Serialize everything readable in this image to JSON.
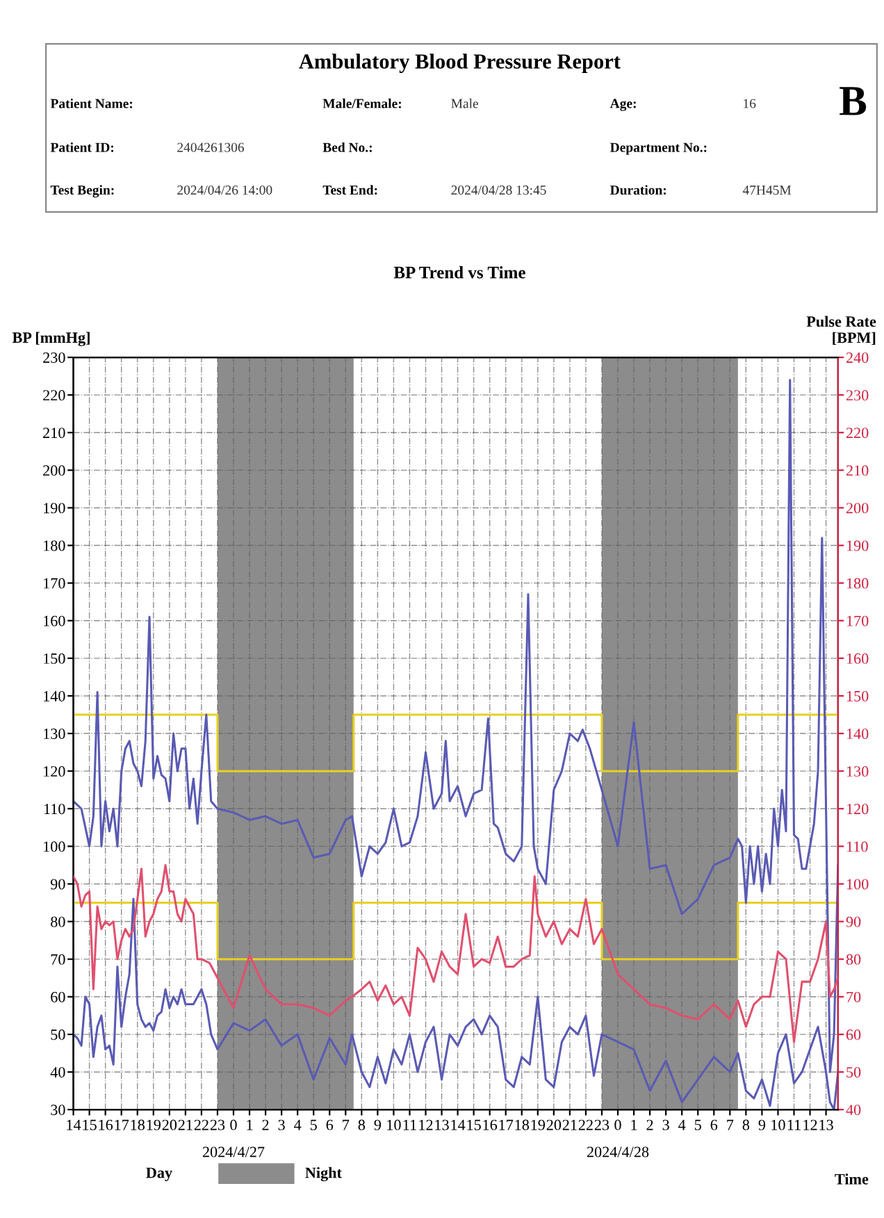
{
  "chart_data": {
    "type": "line",
    "title": "Ambulatory Blood Pressure Report",
    "subtitle": "BP Trend vs Time",
    "ylabel": "BP [mmHg]",
    "y2label": "Pulse Rate\n[BPM]",
    "xlabel": "Time",
    "annotations": [
      "Patient Name:",
      "Male/Female:",
      "Male",
      "Age:",
      "16",
      "Patient ID:",
      "2404261306",
      "Bed No.:",
      "Department No.:",
      "Test Begin:",
      "2024/04/26 14:00",
      "Test End:",
      "2024/04/28 13:45",
      "Duration:",
      "47H45M",
      "B",
      "Day",
      "2024/4/27",
      "2024/4/28",
      "Night"
    ],
    "xlim": [
      "2024-04-26T14:00",
      "2024-04-28T13:45"
    ],
    "xticks": [
      {
        "value": "2024-04-26T14:00",
        "label": "14"
      },
      {
        "value": "2024-04-26T15:00",
        "label": "15"
      },
      {
        "value": "2024-04-26T16:00",
        "label": "16"
      },
      {
        "value": "2024-04-26T17:00",
        "label": "17"
      },
      {
        "value": "2024-04-26T18:00",
        "label": "18"
      },
      {
        "value": "2024-04-26T19:00",
        "label": "19"
      },
      {
        "value": "2024-04-26T20:00",
        "label": "20"
      },
      {
        "value": "2024-04-26T21:00",
        "label": "21"
      },
      {
        "value": "2024-04-26T22:00",
        "label": "22"
      },
      {
        "value": "2024-04-26T23:00",
        "label": "23"
      },
      {
        "value": "2024-04-27T00:00",
        "label": "0"
      },
      {
        "value": "2024-04-27T01:00",
        "label": "1"
      },
      {
        "value": "2024-04-27T02:00",
        "label": "2"
      },
      {
        "value": "2024-04-27T03:00",
        "label": "3"
      },
      {
        "value": "2024-04-27T04:00",
        "label": "4"
      },
      {
        "value": "2024-04-27T05:00",
        "label": "5"
      },
      {
        "value": "2024-04-27T06:00",
        "label": "6"
      },
      {
        "value": "2024-04-27T07:00",
        "label": "7"
      },
      {
        "value": "2024-04-27T08:00",
        "label": "8"
      },
      {
        "value": "2024-04-27T09:00",
        "label": "9"
      },
      {
        "value": "2024-04-27T10:00",
        "label": "10"
      },
      {
        "value": "2024-04-27T11:00",
        "label": "11"
      },
      {
        "value": "2024-04-27T12:00",
        "label": "12"
      },
      {
        "value": "2024-04-27T13:00",
        "label": "13"
      },
      {
        "value": "2024-04-27T14:00",
        "label": "14"
      },
      {
        "value": "2024-04-27T15:00",
        "label": "15"
      },
      {
        "value": "2024-04-27T16:00",
        "label": "16"
      },
      {
        "value": "2024-04-27T17:00",
        "label": "17"
      },
      {
        "value": "2024-04-27T18:00",
        "label": "18"
      },
      {
        "value": "2024-04-27T19:00",
        "label": "19"
      },
      {
        "value": "2024-04-27T20:00",
        "label": "20"
      },
      {
        "value": "2024-04-27T21:00",
        "label": "21"
      },
      {
        "value": "2024-04-27T22:00",
        "label": "22"
      },
      {
        "value": "2024-04-27T23:00",
        "label": "23"
      },
      {
        "value": "2024-04-28T00:00",
        "label": "0"
      },
      {
        "value": "2024-04-28T01:00",
        "label": "1"
      },
      {
        "value": "2024-04-28T02:00",
        "label": "2"
      },
      {
        "value": "2024-04-28T03:00",
        "label": "3"
      },
      {
        "value": "2024-04-28T04:00",
        "label": "4"
      },
      {
        "value": "2024-04-28T05:00",
        "label": "5"
      },
      {
        "value": "2024-04-28T06:00",
        "label": "6"
      },
      {
        "value": "2024-04-28T07:00",
        "label": "7"
      },
      {
        "value": "2024-04-28T08:00",
        "label": "8"
      },
      {
        "value": "2024-04-28T09:00",
        "label": "9"
      },
      {
        "value": "2024-04-28T10:00",
        "label": "10"
      },
      {
        "value": "2024-04-28T11:00",
        "label": "11"
      },
      {
        "value": "2024-04-28T12:00",
        "label": "12"
      },
      {
        "value": "2024-04-28T13:00",
        "label": "13"
      }
    ],
    "ylim": [
      30,
      230
    ],
    "yticks": [
      30,
      40,
      50,
      60,
      70,
      80,
      90,
      100,
      110,
      120,
      130,
      140,
      150,
      160,
      170,
      180,
      190,
      200,
      210,
      220,
      230
    ],
    "y2lim": [
      40,
      240
    ],
    "y2ticks": [
      40,
      50,
      60,
      70,
      80,
      90,
      100,
      110,
      120,
      130,
      140,
      150,
      160,
      170,
      180,
      190,
      200,
      210,
      220,
      230,
      240
    ],
    "grid": true,
    "bands": [
      {
        "axis": "x",
        "from": "2024-04-26T23:00",
        "to": "2024-04-27T07:30",
        "color": "#8c8c8c"
      },
      {
        "axis": "x",
        "from": "2024-04-27T23:00",
        "to": "2024-04-28T07:30",
        "color": "#8c8c8c"
      }
    ],
    "series": [
      {
        "color": "#e8d020",
        "x": [
          "2024-04-26T14:00",
          "2024-04-26T23:00",
          "2024-04-26T23:00",
          "2024-04-27T07:30",
          "2024-04-27T07:30",
          "2024-04-27T23:00",
          "2024-04-27T23:00",
          "2024-04-28T07:30",
          "2024-04-28T07:30",
          "2024-04-28T13:45"
        ],
        "values": [
          135,
          135,
          120,
          120,
          135,
          135,
          120,
          120,
          135,
          135
        ]
      },
      {
        "color": "#e8d020",
        "x": [
          "2024-04-26T14:00",
          "2024-04-26T23:00",
          "2024-04-26T23:00",
          "2024-04-27T07:30",
          "2024-04-27T07:30",
          "2024-04-27T23:00",
          "2024-04-27T23:00",
          "2024-04-28T07:30",
          "2024-04-28T07:30",
          "2024-04-28T13:45"
        ],
        "values": [
          85,
          85,
          70,
          70,
          85,
          85,
          70,
          70,
          85,
          85
        ]
      },
      {
        "color": "#5a5ab4",
        "x": [
          "2024-04-26T14:00",
          "2024-04-26T14:15",
          "2024-04-26T14:30",
          "2024-04-26T14:45",
          "2024-04-26T15:00",
          "2024-04-26T15:15",
          "2024-04-26T15:30",
          "2024-04-26T15:45",
          "2024-04-26T16:00",
          "2024-04-26T16:15",
          "2024-04-26T16:30",
          "2024-04-26T16:45",
          "2024-04-26T17:00",
          "2024-04-26T17:15",
          "2024-04-26T17:30",
          "2024-04-26T17:45",
          "2024-04-26T18:00",
          "2024-04-26T18:15",
          "2024-04-26T18:30",
          "2024-04-26T18:45",
          "2024-04-26T19:00",
          "2024-04-26T19:15",
          "2024-04-26T19:30",
          "2024-04-26T19:45",
          "2024-04-26T20:00",
          "2024-04-26T20:15",
          "2024-04-26T20:30",
          "2024-04-26T20:45",
          "2024-04-26T21:00",
          "2024-04-26T21:15",
          "2024-04-26T21:30",
          "2024-04-26T21:45",
          "2024-04-26T22:00",
          "2024-04-26T22:18",
          "2024-04-26T22:36",
          "2024-04-26T23:00",
          "2024-04-27T00:00",
          "2024-04-27T01:00",
          "2024-04-27T02:00",
          "2024-04-27T03:00",
          "2024-04-27T04:00",
          "2024-04-27T05:00",
          "2024-04-27T06:00",
          "2024-04-27T07:00",
          "2024-04-27T07:24",
          "2024-04-27T08:00",
          "2024-04-27T08:30",
          "2024-04-27T09:00",
          "2024-04-27T09:30",
          "2024-04-27T10:00",
          "2024-04-27T10:30",
          "2024-04-27T11:00",
          "2024-04-27T11:30",
          "2024-04-27T12:00",
          "2024-04-27T12:30",
          "2024-04-27T13:00",
          "2024-04-27T13:15",
          "2024-04-27T13:30",
          "2024-04-27T14:00",
          "2024-04-27T14:30",
          "2024-04-27T15:00",
          "2024-04-27T15:30",
          "2024-04-27T15:54",
          "2024-04-27T16:15",
          "2024-04-27T16:30",
          "2024-04-27T17:00",
          "2024-04-27T17:30",
          "2024-04-27T18:00",
          "2024-04-27T18:24",
          "2024-04-27T18:45",
          "2024-04-27T19:00",
          "2024-04-27T19:30",
          "2024-04-27T20:00",
          "2024-04-27T20:30",
          "2024-04-27T21:00",
          "2024-04-27T21:30",
          "2024-04-27T21:48",
          "2024-04-27T22:15",
          "2024-04-27T23:00",
          "2024-04-28T00:00",
          "2024-04-28T01:00",
          "2024-04-28T02:00",
          "2024-04-28T03:00",
          "2024-04-28T04:00",
          "2024-04-28T05:00",
          "2024-04-28T06:00",
          "2024-04-28T07:00",
          "2024-04-28T07:30",
          "2024-04-28T07:45",
          "2024-04-28T08:00",
          "2024-04-28T08:15",
          "2024-04-28T08:30",
          "2024-04-28T08:45",
          "2024-04-28T09:00",
          "2024-04-28T09:15",
          "2024-04-28T09:30",
          "2024-04-28T09:45",
          "2024-04-28T10:00",
          "2024-04-28T10:15",
          "2024-04-28T10:30",
          "2024-04-28T10:45",
          "2024-04-28T11:00",
          "2024-04-28T11:15",
          "2024-04-28T11:30",
          "2024-04-28T11:45",
          "2024-04-28T12:00",
          "2024-04-28T12:15",
          "2024-04-28T12:30",
          "2024-04-28T12:45",
          "2024-04-28T13:00",
          "2024-04-28T13:15",
          "2024-04-28T13:30",
          "2024-04-28T13:45"
        ],
        "values": [
          112,
          111,
          110,
          105,
          100,
          108,
          141,
          100,
          112,
          104,
          110,
          100,
          120,
          126,
          128,
          122,
          120,
          116,
          128,
          161,
          118,
          124,
          119,
          118,
          112,
          130,
          120,
          126,
          126,
          110,
          118,
          106,
          120,
          135,
          112,
          110,
          109,
          107,
          108,
          106,
          107,
          97,
          98,
          107,
          108,
          92,
          100,
          98,
          101,
          110,
          100,
          101,
          108,
          125,
          110,
          114,
          128,
          112,
          116,
          108,
          114,
          115,
          134,
          106,
          105,
          98,
          96,
          100,
          167,
          100,
          94,
          90,
          115,
          120,
          130,
          128,
          131,
          126,
          115,
          100,
          133,
          94,
          95,
          82,
          86,
          95,
          97,
          102,
          100,
          85,
          100,
          90,
          100,
          88,
          98,
          90,
          110,
          100,
          115,
          104,
          224,
          103,
          102,
          94,
          94,
          100,
          106,
          120,
          182,
          110,
          40,
          50,
          95
        ]
      },
      {
        "color": "#5a5ab4",
        "x": [
          "2024-04-26T14:00",
          "2024-04-26T14:15",
          "2024-04-26T14:30",
          "2024-04-26T14:45",
          "2024-04-26T15:00",
          "2024-04-26T15:15",
          "2024-04-26T15:30",
          "2024-04-26T15:45",
          "2024-04-26T16:00",
          "2024-04-26T16:15",
          "2024-04-26T16:30",
          "2024-04-26T16:45",
          "2024-04-26T17:00",
          "2024-04-26T17:15",
          "2024-04-26T17:30",
          "2024-04-26T17:45",
          "2024-04-26T18:00",
          "2024-04-26T18:15",
          "2024-04-26T18:30",
          "2024-04-26T18:45",
          "2024-04-26T19:00",
          "2024-04-26T19:15",
          "2024-04-26T19:30",
          "2024-04-26T19:45",
          "2024-04-26T20:00",
          "2024-04-26T20:15",
          "2024-04-26T20:30",
          "2024-04-26T20:45",
          "2024-04-26T21:00",
          "2024-04-26T21:15",
          "2024-04-26T21:30",
          "2024-04-26T21:45",
          "2024-04-26T22:00",
          "2024-04-26T22:18",
          "2024-04-26T22:36",
          "2024-04-26T23:00",
          "2024-04-27T00:00",
          "2024-04-27T01:00",
          "2024-04-27T02:00",
          "2024-04-27T03:00",
          "2024-04-27T04:00",
          "2024-04-27T05:00",
          "2024-04-27T06:00",
          "2024-04-27T07:00",
          "2024-04-27T07:24",
          "2024-04-27T08:00",
          "2024-04-27T08:30",
          "2024-04-27T09:00",
          "2024-04-27T09:30",
          "2024-04-27T10:00",
          "2024-04-27T10:30",
          "2024-04-27T11:00",
          "2024-04-27T11:30",
          "2024-04-27T12:00",
          "2024-04-27T12:30",
          "2024-04-27T13:00",
          "2024-04-27T13:30",
          "2024-04-27T14:00",
          "2024-04-27T14:30",
          "2024-04-27T15:00",
          "2024-04-27T15:30",
          "2024-04-27T16:00",
          "2024-04-27T16:30",
          "2024-04-27T17:00",
          "2024-04-27T17:30",
          "2024-04-27T18:00",
          "2024-04-27T18:30",
          "2024-04-27T19:00",
          "2024-04-27T19:30",
          "2024-04-27T20:00",
          "2024-04-27T20:30",
          "2024-04-27T21:00",
          "2024-04-27T21:30",
          "2024-04-27T22:00",
          "2024-04-27T22:30",
          "2024-04-27T23:00",
          "2024-04-28T00:00",
          "2024-04-28T01:00",
          "2024-04-28T02:00",
          "2024-04-28T03:00",
          "2024-04-28T04:00",
          "2024-04-28T05:00",
          "2024-04-28T06:00",
          "2024-04-28T07:00",
          "2024-04-28T07:30",
          "2024-04-28T08:00",
          "2024-04-28T08:30",
          "2024-04-28T09:00",
          "2024-04-28T09:30",
          "2024-04-28T10:00",
          "2024-04-28T10:30",
          "2024-04-28T11:00",
          "2024-04-28T11:30",
          "2024-04-28T12:00",
          "2024-04-28T12:30",
          "2024-04-28T13:00",
          "2024-04-28T13:15",
          "2024-04-28T13:30",
          "2024-04-28T13:45"
        ],
        "values": [
          50,
          49,
          47,
          60,
          58,
          44,
          52,
          55,
          46,
          47,
          42,
          68,
          52,
          60,
          66,
          86,
          58,
          54,
          52,
          53,
          51,
          55,
          56,
          62,
          57,
          60,
          58,
          62,
          58,
          58,
          58,
          60,
          62,
          58,
          50,
          46,
          53,
          51,
          54,
          47,
          50,
          38,
          49,
          42,
          50,
          40,
          36,
          44,
          37,
          46,
          42,
          50,
          40,
          48,
          52,
          38,
          50,
          47,
          52,
          54,
          50,
          55,
          52,
          38,
          36,
          44,
          42,
          60,
          38,
          36,
          48,
          52,
          50,
          55,
          39,
          50,
          48,
          46,
          35,
          43,
          32,
          38,
          44,
          40,
          45,
          35,
          33,
          38,
          31,
          45,
          50,
          37,
          40,
          46,
          52,
          40,
          32,
          30,
          40
        ]
      },
      {
        "color": "#e0506e",
        "axis": "y2",
        "x": [
          "2024-04-26T14:00",
          "2024-04-26T14:15",
          "2024-04-26T14:30",
          "2024-04-26T14:45",
          "2024-04-26T15:00",
          "2024-04-26T15:15",
          "2024-04-26T15:30",
          "2024-04-26T15:45",
          "2024-04-26T16:00",
          "2024-04-26T16:15",
          "2024-04-26T16:30",
          "2024-04-26T16:45",
          "2024-04-26T17:00",
          "2024-04-26T17:15",
          "2024-04-26T17:30",
          "2024-04-26T17:45",
          "2024-04-26T18:00",
          "2024-04-26T18:15",
          "2024-04-26T18:30",
          "2024-04-26T18:45",
          "2024-04-26T19:00",
          "2024-04-26T19:15",
          "2024-04-26T19:30",
          "2024-04-26T19:45",
          "2024-04-26T20:00",
          "2024-04-26T20:15",
          "2024-04-26T20:30",
          "2024-04-26T20:45",
          "2024-04-26T21:00",
          "2024-04-26T21:15",
          "2024-04-26T21:30",
          "2024-04-26T21:45",
          "2024-04-26T22:00",
          "2024-04-26T22:30",
          "2024-04-26T23:00",
          "2024-04-27T00:00",
          "2024-04-27T01:00",
          "2024-04-27T02:00",
          "2024-04-27T03:00",
          "2024-04-27T04:00",
          "2024-04-27T05:00",
          "2024-04-27T06:00",
          "2024-04-27T07:00",
          "2024-04-27T07:24",
          "2024-04-27T08:00",
          "2024-04-27T08:30",
          "2024-04-27T09:00",
          "2024-04-27T09:30",
          "2024-04-27T10:00",
          "2024-04-27T10:30",
          "2024-04-27T11:00",
          "2024-04-27T11:30",
          "2024-04-27T12:00",
          "2024-04-27T12:30",
          "2024-04-27T13:00",
          "2024-04-27T13:30",
          "2024-04-27T14:00",
          "2024-04-27T14:30",
          "2024-04-27T15:00",
          "2024-04-27T15:30",
          "2024-04-27T16:00",
          "2024-04-27T16:30",
          "2024-04-27T17:00",
          "2024-04-27T17:30",
          "2024-04-27T18:00",
          "2024-04-27T18:30",
          "2024-04-27T18:48",
          "2024-04-27T19:00",
          "2024-04-27T19:30",
          "2024-04-27T20:00",
          "2024-04-27T20:30",
          "2024-04-27T21:00",
          "2024-04-27T21:30",
          "2024-04-27T22:00",
          "2024-04-27T22:30",
          "2024-04-27T23:00",
          "2024-04-28T00:00",
          "2024-04-28T01:00",
          "2024-04-28T02:00",
          "2024-04-28T03:00",
          "2024-04-28T04:00",
          "2024-04-28T05:00",
          "2024-04-28T06:00",
          "2024-04-28T07:00",
          "2024-04-28T07:30",
          "2024-04-28T08:00",
          "2024-04-28T08:30",
          "2024-04-28T09:00",
          "2024-04-28T09:30",
          "2024-04-28T10:00",
          "2024-04-28T10:30",
          "2024-04-28T11:00",
          "2024-04-28T11:30",
          "2024-04-28T12:00",
          "2024-04-28T12:30",
          "2024-04-28T13:00",
          "2024-04-28T13:15",
          "2024-04-28T13:30",
          "2024-04-28T13:45"
        ],
        "values": [
          102,
          100,
          94,
          97,
          98,
          72,
          94,
          88,
          90,
          89,
          90,
          80,
          85,
          88,
          86,
          88,
          96,
          104,
          86,
          90,
          92,
          96,
          98,
          105,
          98,
          98,
          92,
          90,
          96,
          94,
          92,
          80,
          80,
          79,
          75,
          67,
          81,
          72,
          68,
          68,
          67,
          65,
          69,
          70,
          72,
          74,
          69,
          73,
          68,
          70,
          65,
          83,
          80,
          74,
          82,
          78,
          76,
          92,
          78,
          80,
          79,
          86,
          78,
          78,
          80,
          81,
          102,
          92,
          86,
          90,
          84,
          88,
          86,
          96,
          84,
          88,
          76,
          72,
          68,
          67,
          65,
          64,
          68,
          64,
          69,
          62,
          68,
          70,
          70,
          82,
          80,
          58,
          74,
          74,
          80,
          90,
          70,
          72,
          75
        ]
      }
    ]
  }
}
